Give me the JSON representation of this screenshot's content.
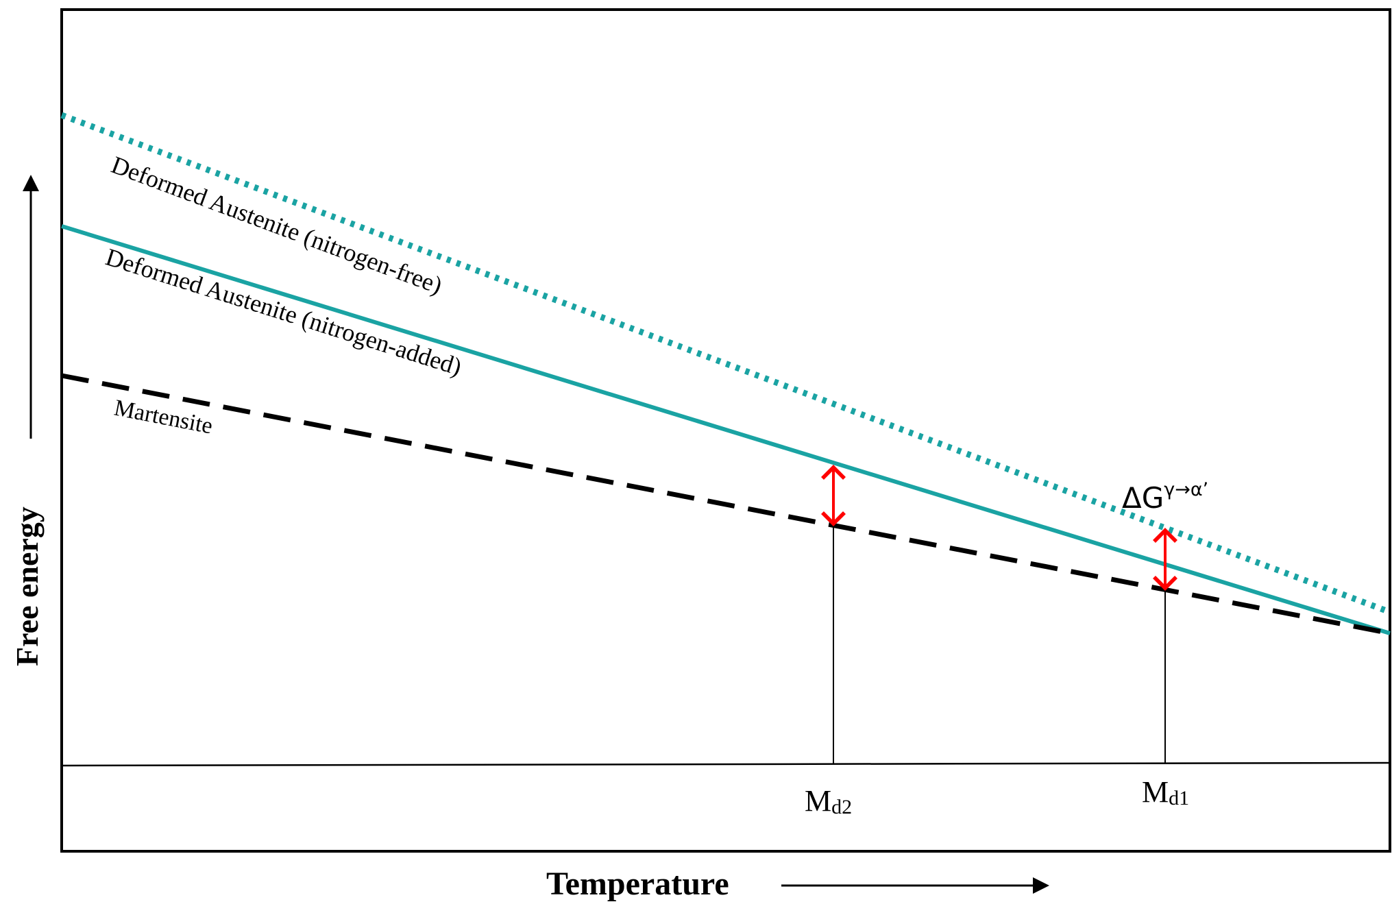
{
  "colors": {
    "austenite": "#1aa3a3",
    "martensite": "#000000",
    "arrow": "#ff0000",
    "axis": "#000000"
  },
  "labels": {
    "y_axis": "Free energy",
    "x_axis": "Temperature",
    "nitrogen_free": "Deformed Austenite (nitrogen-free)",
    "nitrogen_added": "Deformed Austenite (nitrogen-added)",
    "martensite": "Martensite",
    "delta_g_base": "ΔG",
    "delta_g_super": "γ→α’",
    "md2_base": "M",
    "md2_sub": "d2",
    "md1_base": "M",
    "md1_sub": "d1"
  }
}
